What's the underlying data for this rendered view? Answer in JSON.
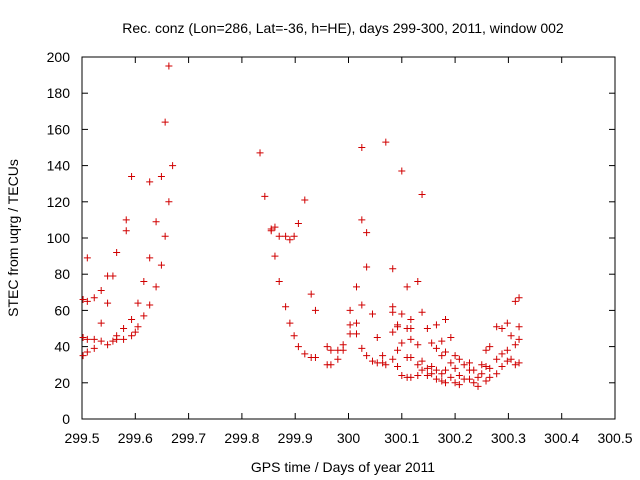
{
  "chart_data": {
    "type": "scatter",
    "title": "Rec. conz (Lon=286, Lat=-36, h=HE), days 299-300, 2011, window 002",
    "xlabel": "GPS time / Days of year 2011",
    "ylabel": "STEC from uqrg / TECUs",
    "xlim": [
      299.5,
      300.5
    ],
    "ylim": [
      0,
      200
    ],
    "xticks": [
      299.5,
      299.6,
      299.7,
      299.8,
      299.9,
      300,
      300.1,
      300.2,
      300.3,
      300.4,
      300.5
    ],
    "xtick_labels": [
      "299.5",
      "299.6",
      "299.7",
      "299.8",
      "299.9",
      "300",
      "300.1",
      "300.2",
      "300.3",
      "300.4",
      "300.5"
    ],
    "yticks": [
      0,
      20,
      40,
      60,
      80,
      100,
      120,
      140,
      160,
      180,
      200
    ],
    "ytick_labels": [
      "0",
      "20",
      "40",
      "60",
      "80",
      "100",
      "120",
      "140",
      "160",
      "180",
      "200"
    ],
    "grid": false,
    "marker": "+",
    "series": [
      {
        "name": "STEC",
        "color": "#d00000",
        "points": [
          [
            299.502,
            66
          ],
          [
            299.502,
            45
          ],
          [
            299.502,
            35
          ],
          [
            299.51,
            65
          ],
          [
            299.51,
            37
          ],
          [
            299.51,
            44
          ],
          [
            299.51,
            89
          ],
          [
            299.523,
            67
          ],
          [
            299.523,
            44
          ],
          [
            299.523,
            39
          ],
          [
            299.536,
            43
          ],
          [
            299.536,
            71
          ],
          [
            299.536,
            53
          ],
          [
            299.548,
            79
          ],
          [
            299.548,
            41
          ],
          [
            299.548,
            64
          ],
          [
            299.558,
            43
          ],
          [
            299.558,
            79
          ],
          [
            299.565,
            92
          ],
          [
            299.565,
            44
          ],
          [
            299.565,
            46
          ],
          [
            299.578,
            44
          ],
          [
            299.578,
            50
          ],
          [
            299.583,
            110
          ],
          [
            299.583,
            104
          ],
          [
            299.593,
            134
          ],
          [
            299.593,
            55
          ],
          [
            299.593,
            46
          ],
          [
            299.6,
            48
          ],
          [
            299.605,
            64
          ],
          [
            299.605,
            51
          ],
          [
            299.616,
            76
          ],
          [
            299.616,
            57
          ],
          [
            299.627,
            131
          ],
          [
            299.627,
            89
          ],
          [
            299.627,
            63
          ],
          [
            299.639,
            109
          ],
          [
            299.639,
            73
          ],
          [
            299.649,
            85
          ],
          [
            299.649,
            134
          ],
          [
            299.656,
            164
          ],
          [
            299.656,
            101
          ],
          [
            299.663,
            195
          ],
          [
            299.663,
            120
          ],
          [
            299.67,
            140
          ],
          [
            299.834,
            147
          ],
          [
            299.843,
            123
          ],
          [
            299.855,
            105
          ],
          [
            299.855,
            104
          ],
          [
            299.862,
            106
          ],
          [
            299.862,
            90
          ],
          [
            299.87,
            101
          ],
          [
            299.87,
            76
          ],
          [
            299.882,
            101
          ],
          [
            299.882,
            62
          ],
          [
            299.89,
            99
          ],
          [
            299.89,
            53
          ],
          [
            299.898,
            101
          ],
          [
            299.898,
            46
          ],
          [
            299.906,
            108
          ],
          [
            299.906,
            40
          ],
          [
            299.918,
            121
          ],
          [
            299.918,
            36
          ],
          [
            299.93,
            69
          ],
          [
            299.93,
            34
          ],
          [
            299.938,
            60
          ],
          [
            299.938,
            34
          ],
          [
            299.96,
            40
          ],
          [
            299.96,
            30
          ],
          [
            299.967,
            38
          ],
          [
            299.967,
            30
          ],
          [
            299.98,
            38
          ],
          [
            299.98,
            33
          ],
          [
            299.99,
            41
          ],
          [
            299.99,
            38
          ],
          [
            300.003,
            60
          ],
          [
            300.003,
            52
          ],
          [
            300.003,
            47
          ],
          [
            300.015,
            53
          ],
          [
            300.015,
            47
          ],
          [
            300.015,
            73
          ],
          [
            300.025,
            150
          ],
          [
            300.025,
            110
          ],
          [
            300.025,
            63
          ],
          [
            300.025,
            39
          ],
          [
            300.034,
            103
          ],
          [
            300.034,
            84
          ],
          [
            300.034,
            35
          ],
          [
            300.045,
            58
          ],
          [
            300.045,
            32
          ],
          [
            300.054,
            31
          ],
          [
            300.054,
            45
          ],
          [
            300.064,
            31
          ],
          [
            300.064,
            35
          ],
          [
            300.07,
            153
          ],
          [
            300.07,
            30
          ],
          [
            300.083,
            83
          ],
          [
            300.083,
            62
          ],
          [
            300.083,
            59
          ],
          [
            300.083,
            48
          ],
          [
            300.083,
            33
          ],
          [
            300.092,
            51
          ],
          [
            300.092,
            52
          ],
          [
            300.092,
            38
          ],
          [
            300.092,
            29
          ],
          [
            300.1,
            137
          ],
          [
            300.1,
            58
          ],
          [
            300.1,
            42
          ],
          [
            300.1,
            24
          ],
          [
            300.11,
            73
          ],
          [
            300.11,
            50
          ],
          [
            300.11,
            34
          ],
          [
            300.11,
            23
          ],
          [
            300.117,
            55
          ],
          [
            300.117,
            50
          ],
          [
            300.117,
            44
          ],
          [
            300.117,
            34
          ],
          [
            300.117,
            23
          ],
          [
            300.13,
            76
          ],
          [
            300.13,
            41
          ],
          [
            300.13,
            30
          ],
          [
            300.13,
            24
          ],
          [
            300.138,
            124
          ],
          [
            300.138,
            59
          ],
          [
            300.138,
            32
          ],
          [
            300.138,
            27
          ],
          [
            300.148,
            50
          ],
          [
            300.148,
            28
          ],
          [
            300.148,
            24
          ],
          [
            300.156,
            42
          ],
          [
            300.156,
            29
          ],
          [
            300.156,
            25
          ],
          [
            300.165,
            52
          ],
          [
            300.165,
            39
          ],
          [
            300.165,
            27
          ],
          [
            300.165,
            22
          ],
          [
            300.175,
            43
          ],
          [
            300.175,
            35
          ],
          [
            300.175,
            25
          ],
          [
            300.175,
            21
          ],
          [
            300.182,
            55
          ],
          [
            300.182,
            37
          ],
          [
            300.182,
            27
          ],
          [
            300.182,
            20
          ],
          [
            300.192,
            45
          ],
          [
            300.192,
            31
          ],
          [
            300.192,
            23
          ],
          [
            300.2,
            35
          ],
          [
            300.2,
            28
          ],
          [
            300.2,
            20
          ],
          [
            300.208,
            33
          ],
          [
            300.208,
            24
          ],
          [
            300.208,
            19
          ],
          [
            300.217,
            30
          ],
          [
            300.217,
            22
          ],
          [
            300.227,
            31
          ],
          [
            300.227,
            27
          ],
          [
            300.227,
            22
          ],
          [
            300.235,
            27
          ],
          [
            300.235,
            20
          ],
          [
            300.243,
            23
          ],
          [
            300.243,
            18
          ],
          [
            300.25,
            30
          ],
          [
            300.25,
            25
          ],
          [
            300.258,
            38
          ],
          [
            300.258,
            29
          ],
          [
            300.258,
            21
          ],
          [
            300.265,
            40
          ],
          [
            300.265,
            28
          ],
          [
            300.265,
            23
          ],
          [
            300.278,
            51
          ],
          [
            300.278,
            33
          ],
          [
            300.278,
            25
          ],
          [
            300.288,
            50
          ],
          [
            300.288,
            36
          ],
          [
            300.288,
            29
          ],
          [
            300.298,
            53
          ],
          [
            300.298,
            38
          ],
          [
            300.298,
            32
          ],
          [
            300.305,
            46
          ],
          [
            300.305,
            33
          ],
          [
            300.313,
            65
          ],
          [
            300.313,
            41
          ],
          [
            300.313,
            30
          ],
          [
            300.32,
            67
          ],
          [
            300.32,
            51
          ],
          [
            300.32,
            44
          ],
          [
            300.32,
            31
          ]
        ]
      }
    ]
  }
}
